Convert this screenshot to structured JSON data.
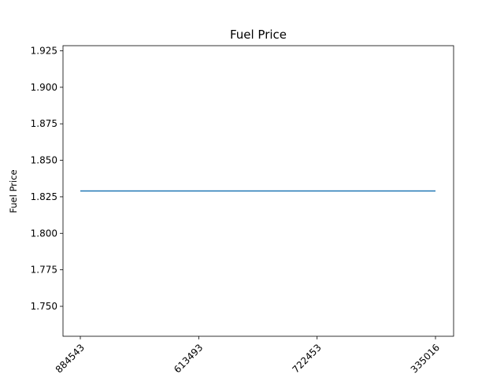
{
  "chart_data": {
    "type": "line",
    "title": "Fuel Price",
    "xlabel": "",
    "ylabel": "Fuel Price",
    "categories": [
      "884543",
      "613493",
      "722453",
      "335016"
    ],
    "series": [
      {
        "values": [
          1.829,
          1.829,
          1.829,
          1.829
        ],
        "color": "#1f77b4"
      }
    ],
    "ylim": [
      1.7295,
      1.9285
    ],
    "yticks": [
      1.75,
      1.775,
      1.8,
      1.825,
      1.85,
      1.875,
      1.9,
      1.925
    ],
    "ytick_labels": [
      "1.750",
      "1.775",
      "1.800",
      "1.825",
      "1.850",
      "1.875",
      "1.900",
      "1.925"
    ],
    "grid": false,
    "legend": "none"
  }
}
